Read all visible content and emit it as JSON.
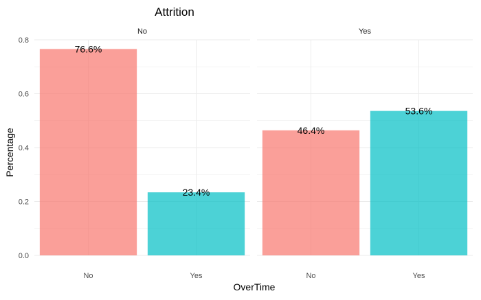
{
  "chart_data": {
    "type": "bar",
    "title": "Attrition",
    "xlabel": "OverTime",
    "ylabel": "Percentage",
    "ylim": [
      0,
      0.8
    ],
    "yticks": [
      0.0,
      0.2,
      0.4,
      0.6,
      0.8
    ],
    "ytick_labels": [
      "0.0",
      "0.2",
      "0.4",
      "0.6",
      "0.8"
    ],
    "categories": [
      "No",
      "Yes"
    ],
    "grid": true,
    "bar_colors": [
      "#F8766D",
      "#00BFC4"
    ],
    "bar_opacity": 0.7,
    "facets": [
      {
        "label": "No",
        "values": [
          0.766,
          0.234
        ],
        "value_labels": [
          "76.6%",
          "23.4%"
        ]
      },
      {
        "label": "Yes",
        "values": [
          0.464,
          0.536
        ],
        "value_labels": [
          "46.4%",
          "53.6%"
        ]
      }
    ]
  }
}
